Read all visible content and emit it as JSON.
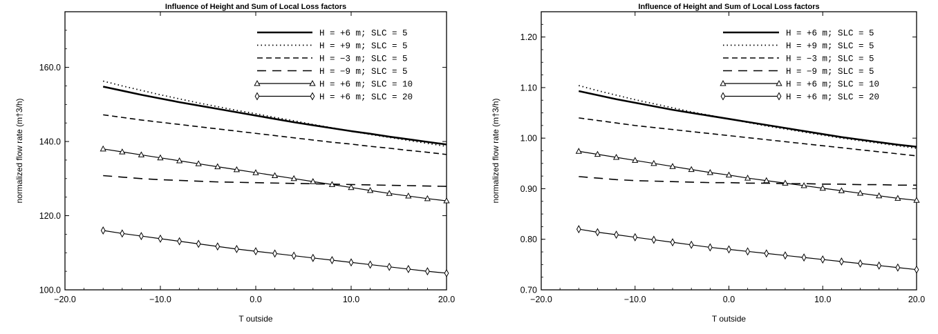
{
  "chart_data": [
    {
      "type": "line",
      "title": "Influence of Height and Sum of Local Loss factors",
      "xlabel": "T outside",
      "ylabel": "normalized flow rate (m†3/h)",
      "xlim": [
        -20,
        20
      ],
      "ylim": [
        100,
        175
      ],
      "xticks": [
        -20,
        -10,
        0,
        10,
        20
      ],
      "xtick_labels": [
        "−20.0",
        "−10.0",
        "0.0",
        "10.0",
        "20.0"
      ],
      "yticks": [
        100,
        120,
        140,
        160
      ],
      "ytick_labels": [
        "100.0",
        "120.0",
        "140.0",
        "160.0"
      ],
      "legend_position": "top-right",
      "x": [
        -16,
        -14,
        -12,
        -10,
        -8,
        -6,
        -4,
        -2,
        0,
        2,
        4,
        6,
        8,
        10,
        12,
        14,
        16,
        18,
        20
      ],
      "series": [
        {
          "name": "H = +6 m; SLC =  5",
          "style": "solid-thick",
          "values": [
            154.8,
            153.7,
            152.6,
            151.6,
            150.6,
            149.7,
            148.8,
            147.9,
            147.0,
            146.1,
            145.2,
            144.4,
            143.6,
            142.8,
            142.1,
            141.3,
            140.6,
            139.9,
            139.2
          ]
        },
        {
          "name": "H = +9 m; SLC =  5",
          "style": "dotted",
          "values": [
            156.3,
            155.0,
            153.8,
            152.6,
            151.5,
            150.4,
            149.4,
            148.4,
            147.5,
            146.5,
            145.6,
            144.6,
            143.7,
            142.8,
            141.9,
            141.1,
            140.3,
            139.5,
            138.7
          ]
        },
        {
          "name": "H = −3 m; SLC =  5",
          "style": "dashed",
          "values": [
            147.2,
            146.5,
            145.8,
            145.2,
            144.6,
            144.0,
            143.4,
            142.8,
            142.2,
            141.6,
            141.0,
            140.4,
            139.8,
            139.3,
            138.7,
            138.2,
            137.6,
            137.1,
            136.5
          ]
        },
        {
          "name": "H = −9 m; SLC =  5",
          "style": "long-dashed",
          "values": [
            130.8,
            130.4,
            130.0,
            129.7,
            129.5,
            129.3,
            129.1,
            129.0,
            128.9,
            128.8,
            128.7,
            128.6,
            128.5,
            128.4,
            128.3,
            128.2,
            128.1,
            128.0,
            127.9
          ]
        },
        {
          "name": "H = +6 m; SLC = 10",
          "style": "solid-triangle",
          "values": [
            138.0,
            137.2,
            136.4,
            135.6,
            134.8,
            134.0,
            133.2,
            132.4,
            131.6,
            130.8,
            130.0,
            129.2,
            128.4,
            127.6,
            126.8,
            126.0,
            125.3,
            124.6,
            124.0
          ]
        },
        {
          "name": "H = +6 m; SLC = 20",
          "style": "solid-diamond",
          "values": [
            116.0,
            115.2,
            114.5,
            113.8,
            113.1,
            112.4,
            111.7,
            111.0,
            110.4,
            109.8,
            109.2,
            108.6,
            108.0,
            107.4,
            106.8,
            106.2,
            105.6,
            105.0,
            104.5
          ]
        }
      ]
    },
    {
      "type": "line",
      "title": "Influence of Height and Sum of Local Loss factors",
      "xlabel": "T outside",
      "ylabel": "normalized flow rate (m†3/h)",
      "xlim": [
        -20,
        20
      ],
      "ylim": [
        0.7,
        1.25
      ],
      "xticks": [
        -20,
        -10,
        0,
        10,
        20
      ],
      "xtick_labels": [
        "−20.0",
        "−10.0",
        "0.0",
        "10.0",
        "20.0"
      ],
      "yticks": [
        0.7,
        0.8,
        0.9,
        1.0,
        1.1,
        1.2
      ],
      "ytick_labels": [
        "0.70",
        "0.80",
        "0.90",
        "1.00",
        "1.10",
        "1.20"
      ],
      "legend_position": "top-right",
      "x": [
        -16,
        -14,
        -12,
        -10,
        -8,
        -6,
        -4,
        -2,
        0,
        2,
        4,
        6,
        8,
        10,
        12,
        14,
        16,
        18,
        20
      ],
      "series": [
        {
          "name": "H = +6 m; SLC =  5",
          "style": "solid-thick",
          "values": [
            1.093,
            1.085,
            1.077,
            1.07,
            1.063,
            1.056,
            1.05,
            1.044,
            1.038,
            1.032,
            1.026,
            1.02,
            1.014,
            1.008,
            1.002,
            0.997,
            0.992,
            0.987,
            0.983
          ]
        },
        {
          "name": "H = +9 m; SLC =  5",
          "style": "dotted",
          "values": [
            1.104,
            1.094,
            1.085,
            1.076,
            1.068,
            1.06,
            1.052,
            1.045,
            1.038,
            1.031,
            1.024,
            1.018,
            1.012,
            1.006,
            1.0,
            0.995,
            0.99,
            0.985,
            0.98
          ]
        },
        {
          "name": "H = −3 m; SLC =  5",
          "style": "dashed",
          "values": [
            1.04,
            1.035,
            1.03,
            1.025,
            1.021,
            1.017,
            1.013,
            1.009,
            1.005,
            1.001,
            0.997,
            0.993,
            0.989,
            0.985,
            0.981,
            0.977,
            0.973,
            0.969,
            0.965
          ]
        },
        {
          "name": "H = −9 m; SLC =  5",
          "style": "long-dashed",
          "values": [
            0.924,
            0.921,
            0.918,
            0.916,
            0.915,
            0.914,
            0.913,
            0.912,
            0.912,
            0.911,
            0.911,
            0.91,
            0.91,
            0.909,
            0.909,
            0.908,
            0.908,
            0.907,
            0.907
          ]
        },
        {
          "name": "H = +6 m; SLC = 10",
          "style": "solid-triangle",
          "values": [
            0.974,
            0.968,
            0.962,
            0.956,
            0.95,
            0.944,
            0.938,
            0.932,
            0.927,
            0.921,
            0.916,
            0.911,
            0.906,
            0.901,
            0.896,
            0.891,
            0.886,
            0.881,
            0.877
          ]
        },
        {
          "name": "H = +6 m; SLC = 20",
          "style": "solid-diamond",
          "values": [
            0.82,
            0.814,
            0.809,
            0.804,
            0.799,
            0.794,
            0.789,
            0.784,
            0.78,
            0.776,
            0.772,
            0.768,
            0.764,
            0.76,
            0.756,
            0.752,
            0.748,
            0.744,
            0.74
          ]
        }
      ]
    }
  ]
}
